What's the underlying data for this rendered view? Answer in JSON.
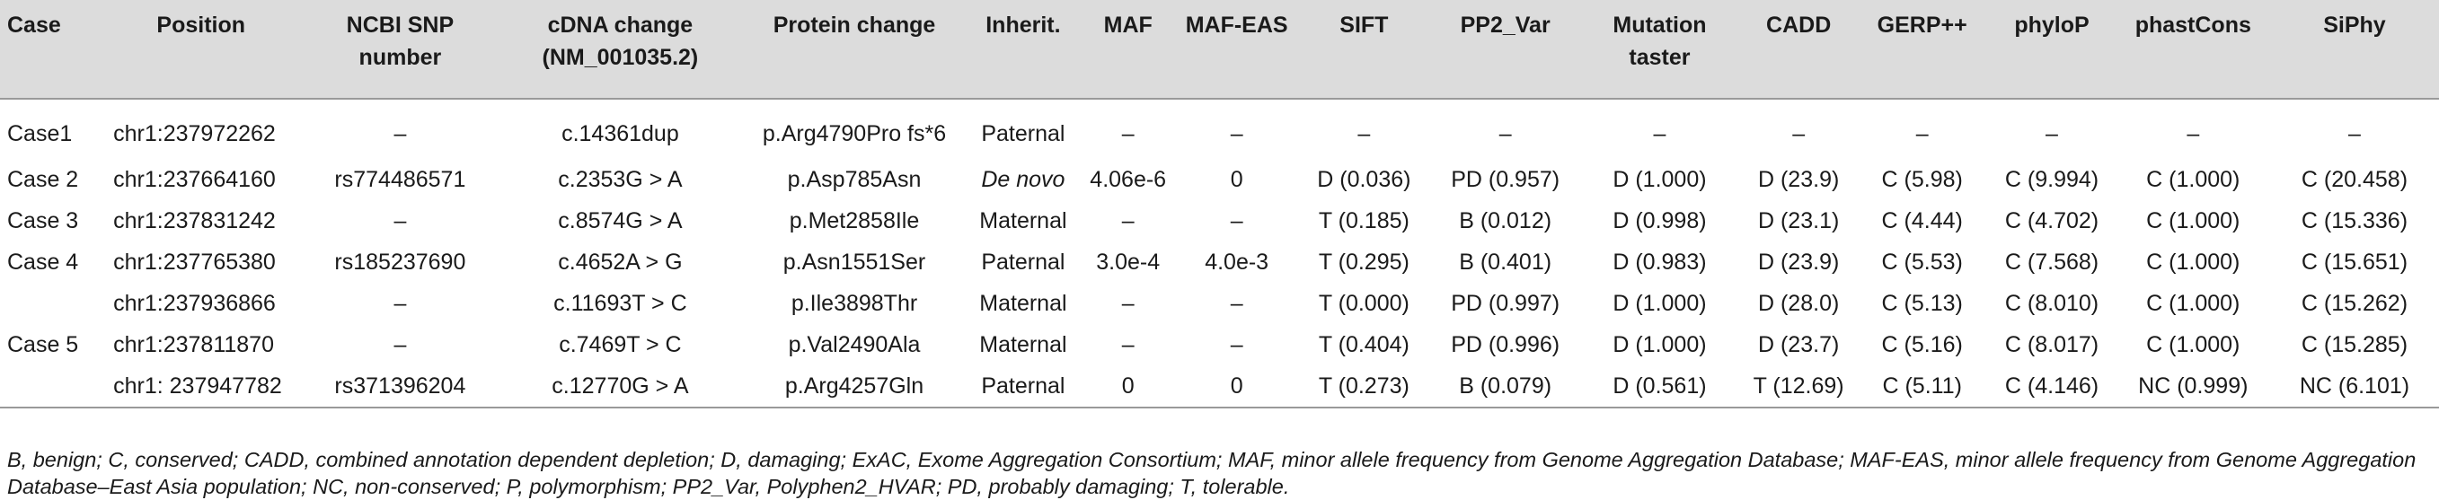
{
  "headers": [
    "Case",
    "Position",
    "NCBI SNP number",
    "cDNA change (NM_001035.2)",
    "Protein change",
    "Inherit.",
    "MAF",
    "MAF-EAS",
    "SIFT",
    "PP2_Var",
    "Mutation taster",
    "CADD",
    "GERP++",
    "phyloP",
    "phastCons",
    "SiPhy"
  ],
  "rows": [
    [
      "Case1",
      "chr1:237972262",
      "–",
      "c.14361dup",
      "p.Arg4790Pro fs*6",
      "Paternal",
      "–",
      "–",
      "–",
      "–",
      "–",
      "–",
      "–",
      "–",
      "–",
      "–"
    ],
    [
      "Case 2",
      "chr1:237664160",
      "rs774486571",
      "c.2353G > A",
      "p.Asp785Asn",
      "De novo",
      "4.06e-6",
      "0",
      "D (0.036)",
      "PD (0.957)",
      "D (1.000)",
      "D (23.9)",
      "C (5.98)",
      "C (9.994)",
      "C (1.000)",
      "C (20.458)"
    ],
    [
      "Case 3",
      "chr1:237831242",
      "–",
      "c.8574G > A",
      "p.Met2858Ile",
      "Maternal",
      "–",
      "–",
      "T (0.185)",
      "B (0.012)",
      "D (0.998)",
      "D (23.1)",
      "C (4.44)",
      "C (4.702)",
      "C (1.000)",
      "C (15.336)"
    ],
    [
      "Case 4",
      "chr1:237765380",
      "rs185237690",
      "c.4652A > G",
      "p.Asn1551Ser",
      "Paternal",
      "3.0e-4",
      "4.0e-3",
      "T (0.295)",
      "B (0.401)",
      "D (0.983)",
      "D (23.9)",
      "C (5.53)",
      "C (7.568)",
      "C (1.000)",
      "C (15.651)"
    ],
    [
      "",
      "chr1:237936866",
      "–",
      "c.11693T > C",
      "p.Ile3898Thr",
      "Maternal",
      "–",
      "–",
      "T (0.000)",
      "PD (0.997)",
      "D (1.000)",
      "D (28.0)",
      "C (5.13)",
      "C (8.010)",
      "C (1.000)",
      "C (15.262)"
    ],
    [
      "Case 5",
      "chr1:237811870",
      "–",
      "c.7469T > C",
      "p.Val2490Ala",
      "Maternal",
      "–",
      "–",
      "T (0.404)",
      "PD (0.996)",
      "D (1.000)",
      "D (23.7)",
      "C (5.16)",
      "C (8.017)",
      "C (1.000)",
      "C (15.285)"
    ],
    [
      "",
      "chr1: 237947782",
      "rs371396204",
      "c.12770G > A",
      "p.Arg4257Gln",
      "Paternal",
      "0",
      "0",
      "T (0.273)",
      "B (0.079)",
      "D (0.561)",
      "T (12.69)",
      "C (5.11)",
      "C (4.146)",
      "NC (0.999)",
      "NC (6.101)"
    ]
  ],
  "footnote": "B, benign; C, conserved; CADD, combined annotation dependent depletion; D, damaging; ExAC, Exome Aggregation Consortium; MAF, minor allele frequency from Genome Aggregation Database; MAF-EAS, minor allele frequency from Genome Aggregation Database–East Asia population; NC, non-conserved; P, polymorphism; PP2_Var, Polyphen2_HVAR; PD, probably damaging; T, tolerable."
}
